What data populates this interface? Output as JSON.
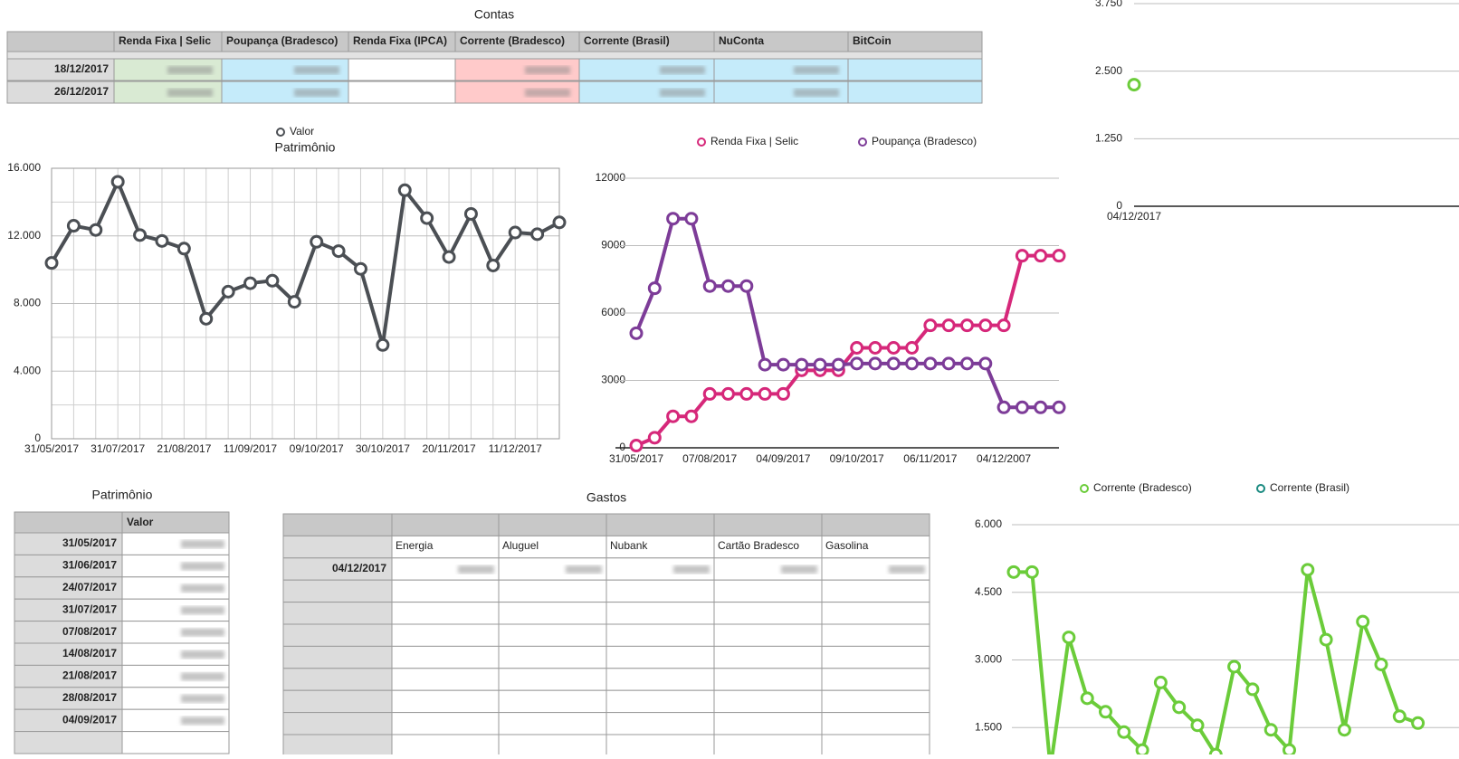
{
  "tables": {
    "contas": {
      "title": "Contas",
      "columns": [
        "Renda Fixa | Selic",
        "Poupança (Bradesco)",
        "Renda Fixa (IPCA)",
        "Corrente (Bradesco)",
        "Corrente (Brasil)",
        "NuConta",
        "BitCoin"
      ],
      "rows": [
        "18/12/2017",
        "26/12/2017"
      ]
    },
    "patrimonio": {
      "title": "Patrimônio",
      "columns": [
        "Valor"
      ],
      "rows": [
        "31/05/2017",
        "31/06/2017",
        "24/07/2017",
        "31/07/2017",
        "07/08/2017",
        "14/08/2017",
        "21/08/2017",
        "28/08/2017",
        "04/09/2017"
      ]
    },
    "gastos": {
      "title": "Gastos",
      "columns": [
        "Energia",
        "Aluguel",
        "Nubank",
        "Cartão Bradesco",
        "Gasolina"
      ],
      "rows": [
        "04/12/2017"
      ]
    }
  },
  "chart_data": [
    {
      "type": "line",
      "title": "Patrimônio",
      "categories": [
        "31/05/2017",
        null,
        null,
        "31/07/2017",
        null,
        null,
        "21/08/2017",
        null,
        null,
        "11/09/2017",
        null,
        null,
        "09/10/2017",
        null,
        null,
        "30/10/2017",
        null,
        null,
        "20/11/2017",
        null,
        null,
        "11/12/2017",
        null,
        null
      ],
      "series": [
        {
          "name": "Valor",
          "color": "#4b4f54",
          "values": [
            10400,
            12600,
            12350,
            15200,
            12050,
            11700,
            11250,
            7100,
            8700,
            9200,
            9350,
            8100,
            11650,
            11100,
            10050,
            5550,
            14700,
            13050,
            10750,
            13300,
            10250,
            12200,
            12100,
            12800
          ]
        }
      ],
      "ylim": [
        0,
        16000
      ],
      "yticks": [
        0,
        {
          "value": 4000,
          "label": "4.000"
        },
        {
          "value": 8000,
          "label": "8.000"
        },
        {
          "value": 12000,
          "label": "12.000"
        },
        {
          "value": 16000,
          "label": "16.000"
        }
      ],
      "grid": true,
      "legend": "top"
    },
    {
      "type": "line",
      "categories": [
        "31/05/2017",
        null,
        null,
        null,
        "07/08/2017",
        null,
        null,
        null,
        "04/09/2017",
        null,
        null,
        null,
        "09/10/2017",
        null,
        null,
        null,
        "06/11/2017",
        null,
        null,
        null,
        "04/12/2007",
        null,
        null,
        null
      ],
      "series": [
        {
          "name": "Renda Fixa | Selic",
          "color": "#d6287a",
          "values": [
            100,
            450,
            1400,
            1400,
            2400,
            2400,
            2400,
            2400,
            2400,
            3450,
            3450,
            3450,
            4450,
            4450,
            4450,
            4450,
            5450,
            5450,
            5450,
            5450,
            5450,
            8550,
            8550,
            8550
          ]
        },
        {
          "name": "Poupança (Bradesco)",
          "color": "#7d3c98",
          "values": [
            5100,
            7100,
            10200,
            10200,
            7200,
            7200,
            7200,
            3700,
            3700,
            3700,
            3700,
            3700,
            3750,
            3750,
            3750,
            3750,
            3750,
            3750,
            3750,
            3750,
            1800,
            1800,
            1800,
            1800
          ]
        }
      ],
      "ylim": [
        0,
        12000
      ],
      "yticks": [
        0,
        3000,
        6000,
        9000,
        12000
      ],
      "grid": true,
      "legend": "top"
    },
    {
      "type": "line",
      "categories": [
        "04/12/2017"
      ],
      "series": [
        {
          "color": "#6bcc3a",
          "values": [
            2250
          ]
        }
      ],
      "ylim": [
        0,
        3750
      ],
      "yticks": [
        0,
        {
          "value": 1250,
          "label": "1.250"
        },
        {
          "value": 2500,
          "label": "2.500"
        },
        {
          "value": 3750,
          "label": "3.750"
        }
      ],
      "grid": true
    },
    {
      "type": "line",
      "series": [
        {
          "name": "Corrente (Bradesco)",
          "color": "#6bcc3a",
          "values": [
            4950,
            4950,
            600,
            3500,
            2150,
            1850,
            1400,
            1000,
            2500,
            1950,
            1550,
            900,
            2850,
            2350,
            1450,
            1000,
            5000,
            3450,
            1450,
            3850,
            2900,
            1750,
            1600
          ]
        },
        {
          "name": "Corrente (Brasil)",
          "color": "#1a8a80",
          "values": []
        }
      ],
      "ylim": [
        0,
        6000
      ],
      "yticks": [
        {
          "value": 1500,
          "label": "1.500"
        },
        {
          "value": 3000,
          "label": "3.000"
        },
        {
          "value": 4500,
          "label": "4.500"
        },
        {
          "value": 6000,
          "label": "6.000"
        }
      ],
      "grid": true,
      "legend": "top"
    }
  ]
}
